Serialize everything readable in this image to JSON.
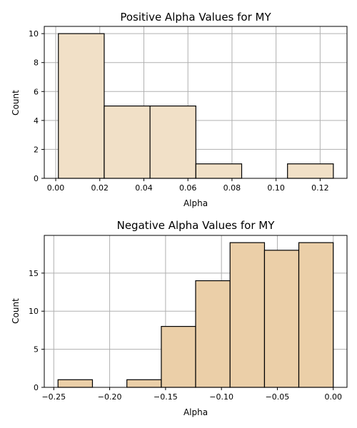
{
  "chart_data": [
    {
      "type": "bar",
      "title": "Positive Alpha Values for MY",
      "xlabel": "Alpha",
      "ylabel": "Count",
      "color": "#f1e0c7",
      "grid": true,
      "xlim": [
        -0.0052,
        0.1322
      ],
      "ylim": [
        0,
        10.5
      ],
      "xticks": [
        0.0,
        0.02,
        0.04,
        0.06,
        0.08,
        0.1,
        0.12
      ],
      "xtick_labels": [
        "0.00",
        "0.02",
        "0.04",
        "0.06",
        "0.08",
        "0.10",
        "0.12"
      ],
      "yticks": [
        0,
        2,
        4,
        6,
        8,
        10
      ],
      "ytick_labels": [
        "0",
        "2",
        "4",
        "6",
        "8",
        "10"
      ],
      "bins": [
        {
          "x0": 0.0012,
          "x1": 0.022,
          "count": 10
        },
        {
          "x0": 0.022,
          "x1": 0.0428,
          "count": 5
        },
        {
          "x0": 0.0428,
          "x1": 0.0636,
          "count": 5
        },
        {
          "x0": 0.0636,
          "x1": 0.0844,
          "count": 1
        },
        {
          "x0": 0.0844,
          "x1": 0.1052,
          "count": 0
        },
        {
          "x0": 0.1052,
          "x1": 0.126,
          "count": 1
        }
      ]
    },
    {
      "type": "bar",
      "title": "Negative Alpha Values for MY",
      "xlabel": "Alpha",
      "ylabel": "Count",
      "color": "#ebcfa8",
      "grid": true,
      "xlim": [
        -0.2585,
        0.0123
      ],
      "ylim": [
        0,
        19.95
      ],
      "xticks": [
        -0.25,
        -0.2,
        -0.15,
        -0.1,
        -0.05,
        0.0
      ],
      "xtick_labels": [
        "−0.25",
        "−0.20",
        "−0.15",
        "−0.10",
        "−0.05",
        "0.00"
      ],
      "yticks": [
        0,
        5,
        10,
        15
      ],
      "ytick_labels": [
        "0",
        "5",
        "10",
        "15"
      ],
      "bins": [
        {
          "x0": -0.2462,
          "x1": -0.2154,
          "count": 1
        },
        {
          "x0": -0.2154,
          "x1": -0.1846,
          "count": 0
        },
        {
          "x0": -0.1846,
          "x1": -0.1538,
          "count": 1
        },
        {
          "x0": -0.1538,
          "x1": -0.1231,
          "count": 8
        },
        {
          "x0": -0.1231,
          "x1": -0.0923,
          "count": 14
        },
        {
          "x0": -0.0923,
          "x1": -0.0615,
          "count": 19
        },
        {
          "x0": -0.0615,
          "x1": -0.0308,
          "count": 18
        },
        {
          "x0": -0.0308,
          "x1": 0.0,
          "count": 19
        }
      ]
    }
  ]
}
